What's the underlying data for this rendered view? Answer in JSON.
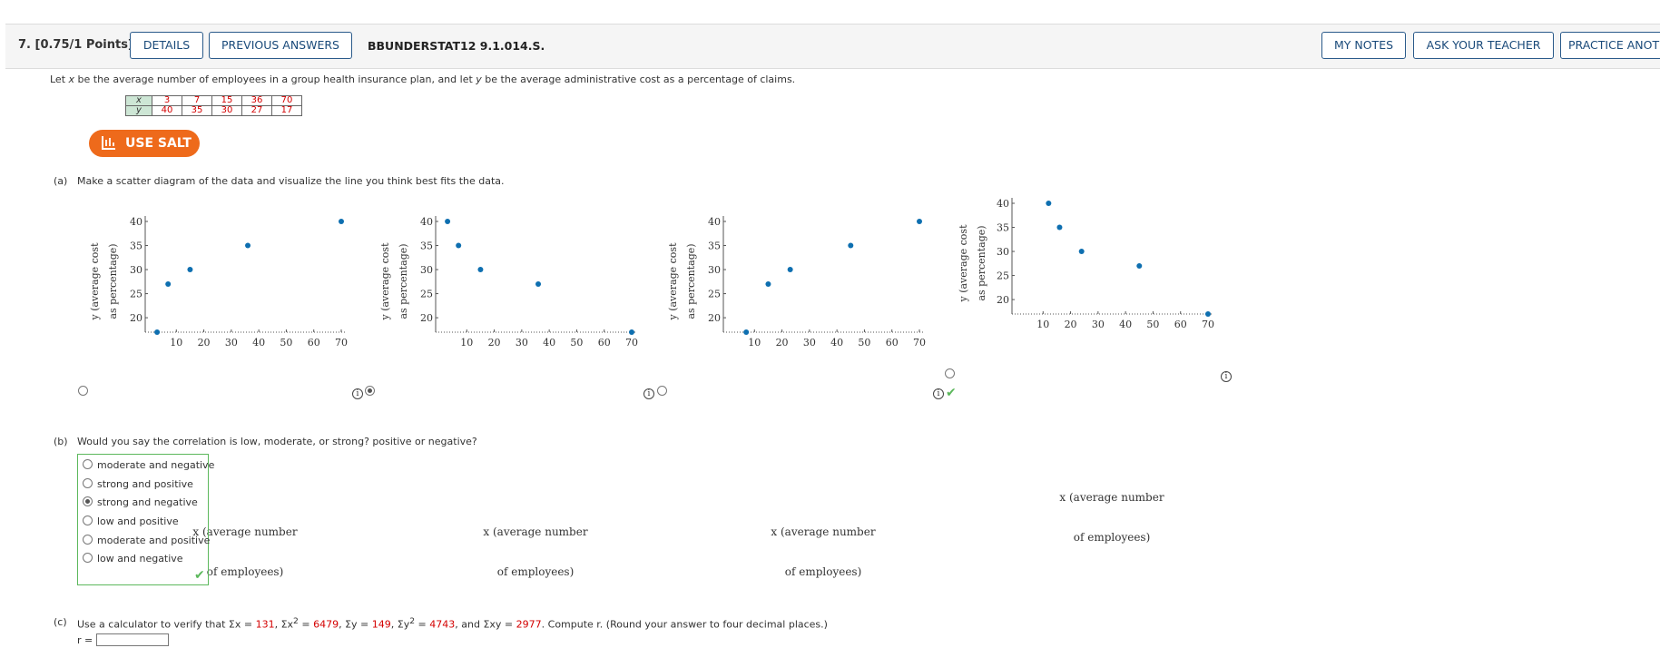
{
  "header": {
    "question": "7. [0.75/1 Points]",
    "details_label": "DETAILS",
    "previous_answers_label": "PREVIOUS ANSWERS",
    "code": "BBUNDERSTAT12 9.1.014.S.",
    "my_notes_label": "MY NOTES",
    "ask_teacher_label": "ASK YOUR TEACHER",
    "practice_label": "PRACTICE ANOTH"
  },
  "intro": {
    "p1": "Let ",
    "x": "x",
    "p2": " be the average number of employees in a group health insurance plan, and let ",
    "y": "y",
    "p3": " be the average administrative cost as a percentage of claims."
  },
  "table": {
    "x_label": "x",
    "y_label": "y",
    "x_values": [
      "3",
      "7",
      "15",
      "36",
      "70"
    ],
    "y_values": [
      "40",
      "35",
      "30",
      "27",
      "17"
    ]
  },
  "salt_label": "USE SALT",
  "part_a": {
    "label": "(a)",
    "text": "Make a scatter diagram of the data and visualize the line you think best fits the data."
  },
  "axis_labels": {
    "y_line1": "y (average cost",
    "y_line2": "as percentage)",
    "x_line1": "x (average number",
    "x_line2": "of employees)",
    "x_ticks": [
      "10",
      "20",
      "30",
      "40",
      "50",
      "60",
      "70"
    ],
    "y_ticks": [
      "20",
      "25",
      "30",
      "35",
      "40"
    ]
  },
  "chart_data": [
    {
      "type": "scatter",
      "ylabel": "y (average cost as percentage)",
      "xlabel": "x (average number of employees)",
      "xlim": [
        0,
        70
      ],
      "ylim": [
        17,
        40
      ],
      "points": [
        [
          3,
          17
        ],
        [
          7,
          27
        ],
        [
          15,
          30
        ],
        [
          36,
          35
        ],
        [
          70,
          40
        ]
      ],
      "selected": false
    },
    {
      "type": "scatter",
      "ylabel": "y (average cost as percentage)",
      "xlabel": "x (average number of employees)",
      "xlim": [
        0,
        70
      ],
      "ylim": [
        17,
        40
      ],
      "points": [
        [
          3,
          40
        ],
        [
          7,
          35
        ],
        [
          15,
          30
        ],
        [
          36,
          27
        ],
        [
          70,
          17
        ]
      ],
      "selected": true
    },
    {
      "type": "scatter",
      "ylabel": "y (average cost as percentage)",
      "xlabel": "x (average number of employees)",
      "xlim": [
        0,
        70
      ],
      "ylim": [
        17,
        40
      ],
      "points": [
        [
          7,
          17
        ],
        [
          15,
          27
        ],
        [
          23,
          30
        ],
        [
          45,
          35
        ],
        [
          70,
          40
        ]
      ],
      "selected": false
    },
    {
      "type": "scatter",
      "ylabel": "y (average cost as percentage)",
      "xlabel": "x (average number of employees)",
      "xlim": [
        0,
        70
      ],
      "ylim": [
        17,
        40
      ],
      "points": [
        [
          12,
          40
        ],
        [
          16,
          35
        ],
        [
          24,
          30
        ],
        [
          45,
          27
        ],
        [
          70,
          17
        ]
      ],
      "selected": false,
      "marked_correct": true
    }
  ],
  "part_b": {
    "label": "(b)",
    "text": "Would you say the correlation is low, moderate, or strong? positive or negative?",
    "options": [
      "moderate and negative",
      "strong and positive",
      "strong and negative",
      "low and positive",
      "moderate and positive",
      "low and negative"
    ],
    "selected_index": 2
  },
  "part_c": {
    "label": "(c)",
    "t1": "Use a calculator to verify that Σx = ",
    "v1": "131",
    "t2": ", Σx",
    "t3": " = ",
    "v2": "6479",
    "t4": ", Σy = ",
    "v3": "149",
    "t5": ", Σy",
    "t6": " = ",
    "v4": "4743",
    "t7": ", and Σxy = ",
    "v5": "2977",
    "t8": ". Compute r. (Round your answer to four decimal places.)",
    "sup": "2",
    "r_label": "r ="
  },
  "colors": {
    "accent": "#ee6a1b",
    "point": "#0e6fb0",
    "correct": "#5cb85c",
    "link": "#1a4a7a"
  }
}
